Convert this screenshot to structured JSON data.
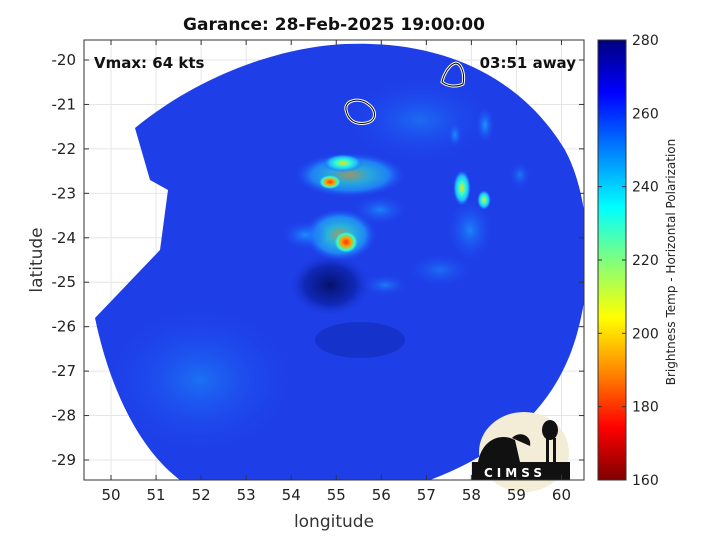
{
  "title": "Garance: 28-Feb-2025 19:00:00",
  "annotations": {
    "vmax": "Vmax: 64 kts",
    "time_away": "03:51 away"
  },
  "axes": {
    "xlabel": "longitude",
    "ylabel": "latitude",
    "xlim": [
      49.4,
      60.5
    ],
    "ylim": [
      -29.45,
      -19.55
    ],
    "xticks": [
      "50",
      "51",
      "52",
      "53",
      "54",
      "55",
      "56",
      "57",
      "58",
      "59",
      "60"
    ],
    "yticks": [
      "-20",
      "-21",
      "-22",
      "-23",
      "-24",
      "-25",
      "-26",
      "-27",
      "-28",
      "-29"
    ]
  },
  "colorbar": {
    "label": "Brightness Temp - Horizontal Polarization",
    "range": [
      160,
      280
    ],
    "ticks": [
      "280",
      "260",
      "240",
      "220",
      "200",
      "180",
      "160"
    ],
    "colormap": [
      "#7f0000",
      "#ff0000",
      "#ff8c00",
      "#ffff00",
      "#7fff7f",
      "#00ffff",
      "#0080ff",
      "#0000ff",
      "#00007f"
    ]
  },
  "logo": {
    "text": "CIMSS"
  },
  "colors": {
    "swath_background": "#1e3fe8",
    "storm_core": "#0a1c8c",
    "rainband_high": "#20c8ff",
    "rainband_peak": "#ff8c00",
    "island_outline": "#ffffff"
  }
}
